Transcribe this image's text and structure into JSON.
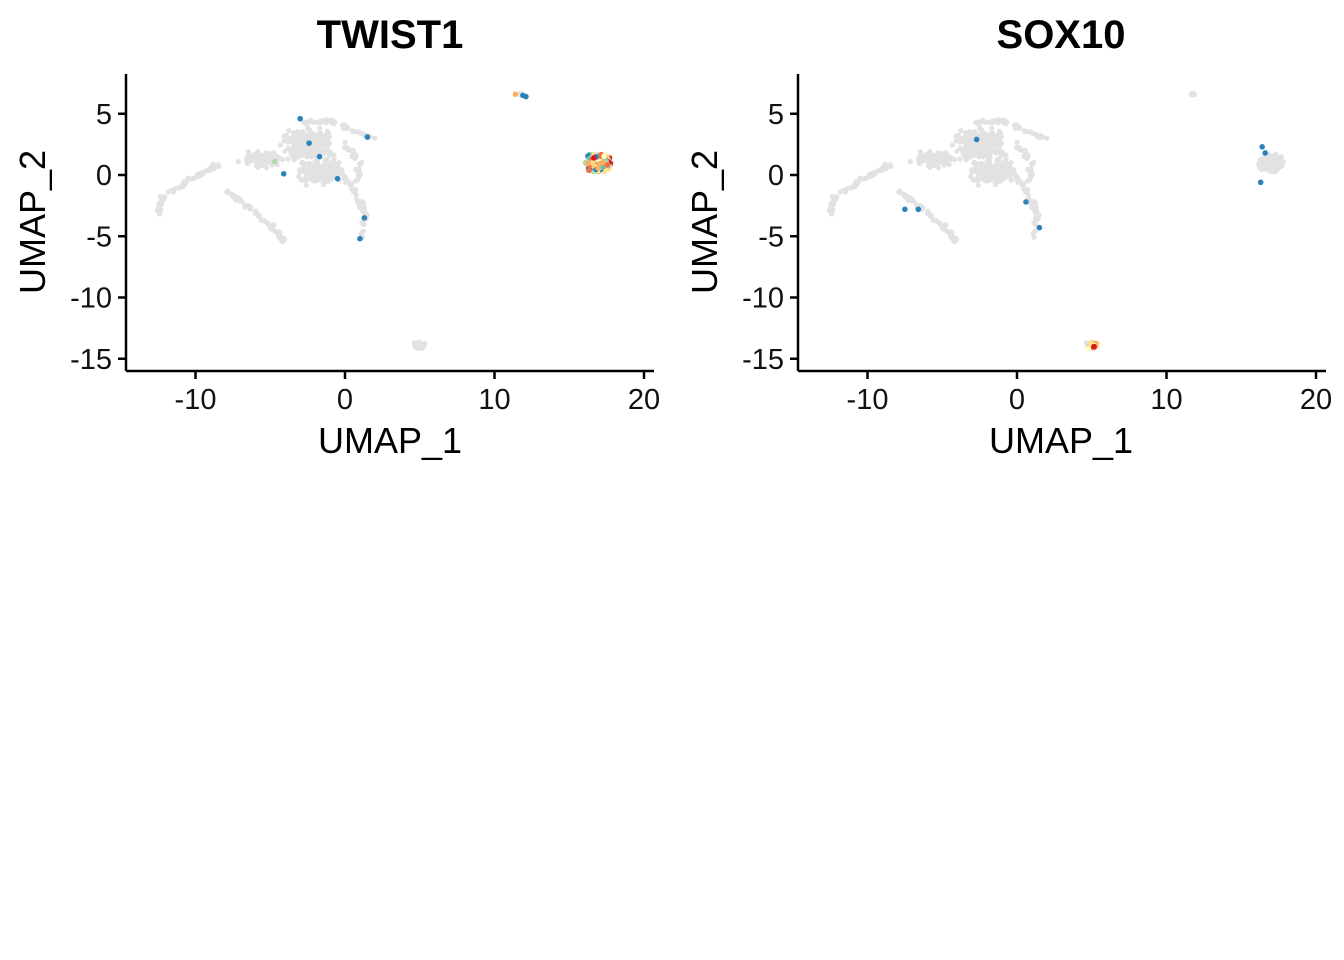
{
  "chart_data": [
    {
      "type": "scatter",
      "title": "TWIST1",
      "xlabel": "UMAP_1",
      "ylabel": "UMAP_2",
      "xlim": [
        -15,
        20.5
      ],
      "ylim": [
        -16,
        8
      ],
      "xticks": [
        -10,
        0,
        10,
        20
      ],
      "yticks": [
        -15,
        -10,
        -5,
        0,
        5
      ],
      "xtick_labels": [
        "-10",
        "0",
        "10",
        "20"
      ],
      "ytick_labels": [
        "-15",
        "-10",
        "-5",
        "0",
        "5"
      ],
      "grid": false,
      "background_color": "#e2e2e2",
      "high_expression_cluster": "x≈15.5–18.5, y≈-0.5–2.5",
      "expressing_cells": [
        {
          "x": 11.4,
          "y": 6.6,
          "color": "#fdae61"
        },
        {
          "x": 11.9,
          "y": 6.5,
          "color": "#2b83ba"
        },
        {
          "x": 12.1,
          "y": 6.4,
          "color": "#2b83ba"
        },
        {
          "x": -3.0,
          "y": 4.6,
          "color": "#2b83ba"
        },
        {
          "x": -2.4,
          "y": 2.6,
          "color": "#2b83ba"
        },
        {
          "x": -1.7,
          "y": 1.5,
          "color": "#2b83ba"
        },
        {
          "x": -4.1,
          "y": 0.1,
          "color": "#2b83ba"
        },
        {
          "x": -4.7,
          "y": 1.1,
          "color": "#abdda4"
        },
        {
          "x": 1.5,
          "y": 3.1,
          "color": "#2b83ba"
        },
        {
          "x": 1.3,
          "y": -3.5,
          "color": "#2b83ba"
        },
        {
          "x": 1.0,
          "y": -5.2,
          "color": "#2b83ba"
        },
        {
          "x": -0.5,
          "y": -0.3,
          "color": "#2b83ba"
        }
      ]
    },
    {
      "type": "scatter",
      "title": "SOX10",
      "xlabel": "UMAP_1",
      "ylabel": "UMAP_2",
      "xlim": [
        -15,
        20.5
      ],
      "ylim": [
        -16,
        8
      ],
      "xticks": [
        -10,
        0,
        10,
        20
      ],
      "yticks": [
        -15,
        -10,
        -5,
        0,
        5
      ],
      "xtick_labels": [
        "-10",
        "0",
        "10",
        "20"
      ],
      "ytick_labels": [
        "-15",
        "-10",
        "-5",
        "0",
        "5"
      ],
      "grid": false,
      "background_color": "#e2e2e2",
      "high_expression_cluster": "x≈4.5–5.8, y≈-14.5–-13.3",
      "expressing_cells": [
        {
          "x": -2.7,
          "y": 2.9,
          "color": "#2b83ba"
        },
        {
          "x": 0.6,
          "y": -2.2,
          "color": "#2b83ba"
        },
        {
          "x": 1.5,
          "y": -4.3,
          "color": "#2b83ba"
        },
        {
          "x": -7.5,
          "y": -2.8,
          "color": "#2b83ba"
        },
        {
          "x": -6.6,
          "y": -2.8,
          "color": "#2b83ba"
        },
        {
          "x": 16.4,
          "y": 2.3,
          "color": "#2b83ba"
        },
        {
          "x": 16.6,
          "y": 1.8,
          "color": "#2b83ba"
        },
        {
          "x": 16.3,
          "y": -0.6,
          "color": "#2b83ba"
        }
      ]
    }
  ]
}
